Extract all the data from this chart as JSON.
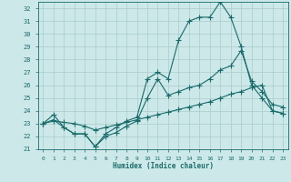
{
  "xlabel": "Humidex (Indice chaleur)",
  "background_color": "#cce8e8",
  "grid_color": "#aacccc",
  "line_color": "#1a6b6b",
  "xlim": [
    -0.5,
    23.5
  ],
  "ylim": [
    21,
    32.5
  ],
  "xticks": [
    0,
    1,
    2,
    3,
    4,
    5,
    6,
    7,
    8,
    9,
    10,
    11,
    12,
    13,
    14,
    15,
    16,
    17,
    18,
    19,
    20,
    21,
    22,
    23
  ],
  "yticks": [
    21,
    22,
    23,
    24,
    25,
    26,
    27,
    28,
    29,
    30,
    31,
    32
  ],
  "line1_x": [
    0,
    1,
    2,
    3,
    4,
    5,
    6,
    7,
    8,
    9,
    10,
    11,
    12,
    13,
    14,
    15,
    16,
    17,
    18,
    19,
    20,
    21,
    22,
    23
  ],
  "line1_y": [
    23.0,
    23.7,
    22.7,
    22.2,
    22.2,
    21.2,
    22.2,
    22.7,
    23.2,
    23.5,
    26.5,
    27.0,
    26.5,
    29.5,
    31.0,
    31.3,
    31.3,
    32.5,
    31.3,
    29.0,
    26.0,
    25.0,
    24.0,
    23.8
  ],
  "line2_x": [
    0,
    1,
    2,
    3,
    4,
    5,
    6,
    7,
    8,
    9,
    10,
    11,
    12,
    13,
    14,
    15,
    16,
    17,
    18,
    19,
    20,
    21,
    22,
    23
  ],
  "line2_y": [
    23.0,
    23.3,
    22.7,
    22.2,
    22.2,
    21.2,
    22.0,
    22.3,
    22.8,
    23.2,
    25.0,
    26.5,
    25.2,
    25.5,
    25.8,
    26.0,
    26.5,
    27.2,
    27.5,
    28.7,
    26.3,
    25.5,
    24.5,
    24.3
  ],
  "line3_x": [
    0,
    1,
    2,
    3,
    4,
    5,
    6,
    7,
    8,
    9,
    10,
    11,
    12,
    13,
    14,
    15,
    16,
    17,
    18,
    19,
    20,
    21,
    22,
    23
  ],
  "line3_y": [
    23.0,
    23.2,
    23.1,
    23.0,
    22.8,
    22.5,
    22.7,
    22.9,
    23.1,
    23.3,
    23.5,
    23.7,
    23.9,
    24.1,
    24.3,
    24.5,
    24.7,
    25.0,
    25.3,
    25.5,
    25.8,
    26.0,
    24.0,
    23.8
  ]
}
